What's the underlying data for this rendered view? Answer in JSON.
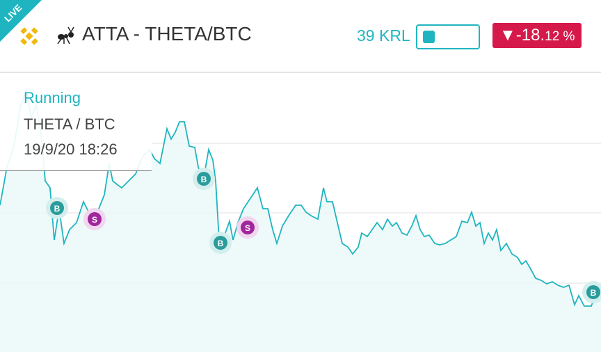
{
  "header": {
    "badge": "LIVE",
    "title": "ATTA - THETA/BTC",
    "balance": "39 KRL",
    "change": {
      "arrow": "▼",
      "main": "-18.",
      "fraction": "12 %"
    }
  },
  "tooltip": {
    "status": "Running",
    "pair": "THETA / BTC",
    "time": "19/9/20 18:26"
  },
  "trades": [
    {
      "label": "B"
    },
    {
      "label": "S"
    },
    {
      "label": "B"
    },
    {
      "label": "B"
    },
    {
      "label": "S"
    },
    {
      "label": "B"
    }
  ]
}
